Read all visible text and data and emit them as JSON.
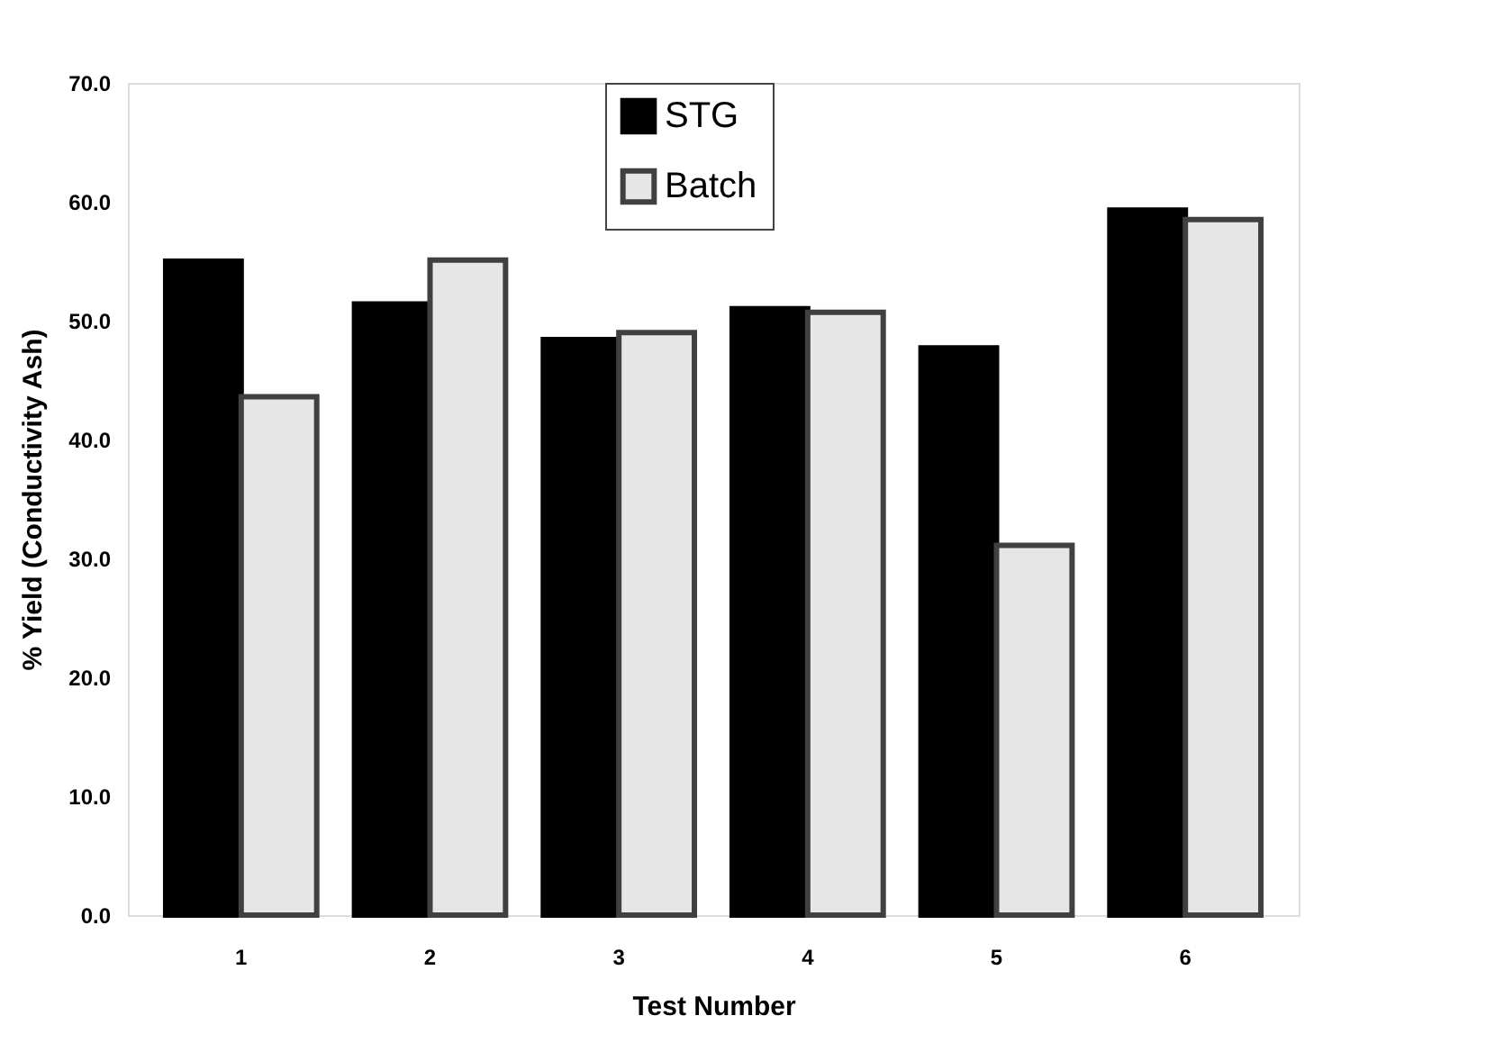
{
  "chart_data": {
    "type": "bar",
    "xlabel": "Test Number",
    "ylabel": "% Yield (Conductivity Ash)",
    "categories": [
      "1",
      "2",
      "3",
      "4",
      "5",
      "6"
    ],
    "series": [
      {
        "name": "STG",
        "color": "#000000",
        "values": [
          55.0,
          51.4,
          48.4,
          51.0,
          47.7,
          59.3
        ]
      },
      {
        "name": "Batch",
        "color": "#e6e6e6",
        "values": [
          43.6,
          55.1,
          49.0,
          50.7,
          31.1,
          58.5
        ]
      }
    ],
    "ylim": [
      0,
      70
    ],
    "yticks": [
      {
        "value": 0,
        "label": "0.0"
      },
      {
        "value": 10,
        "label": "10.0"
      },
      {
        "value": 20,
        "label": "20.0"
      },
      {
        "value": 30,
        "label": "30.0"
      },
      {
        "value": 40,
        "label": "40.0"
      },
      {
        "value": 50,
        "label": "50.0"
      },
      {
        "value": 60,
        "label": "60.0"
      },
      {
        "value": 70,
        "label": "70.0"
      }
    ],
    "grid": false,
    "legend": "top"
  }
}
